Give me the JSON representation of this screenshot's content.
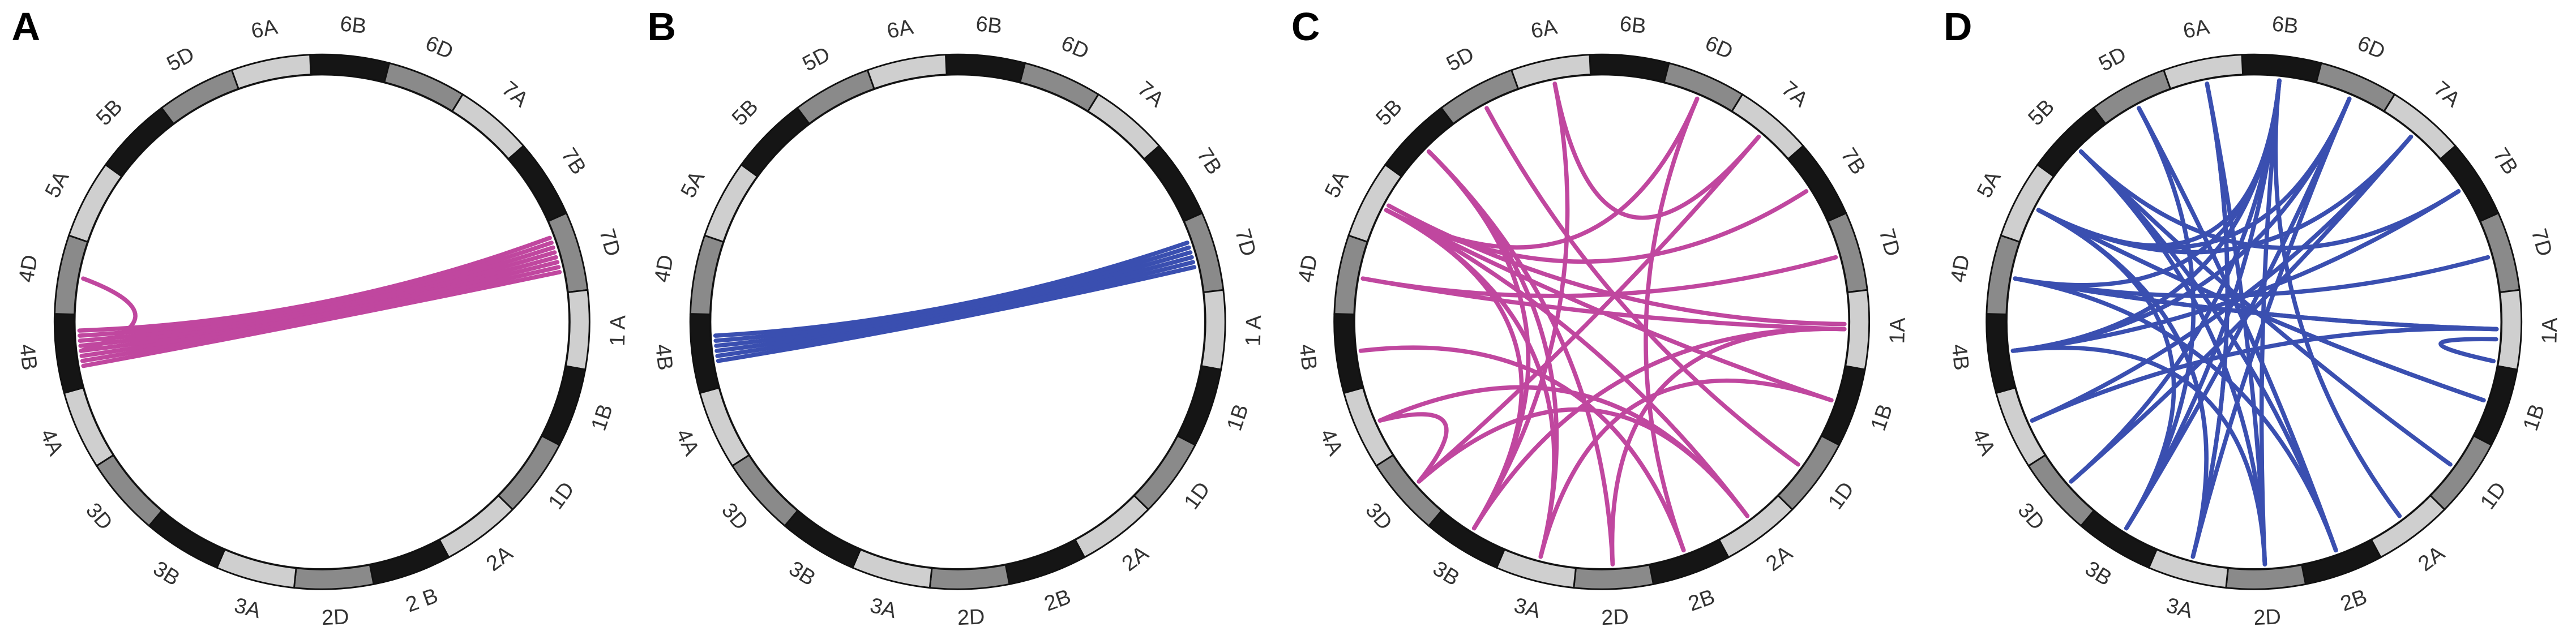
{
  "panels": [
    {
      "label": "A",
      "chromosomes": [
        "6B",
        "6D",
        "7A",
        "7B",
        "7D",
        "1 A",
        "1B",
        "1D",
        "2A",
        "2 B",
        "2D",
        "3A",
        "3B",
        "3D",
        "4A",
        "4B",
        "4D",
        "5A",
        "5B",
        "5D",
        "6A"
      ]
    },
    {
      "label": "B",
      "chromosomes": [
        "6B",
        "6D",
        "7A",
        "7B",
        "7D",
        "1 A",
        "1B",
        "1D",
        "2A",
        "2B",
        "2D",
        "3A",
        "3B",
        "3D",
        "4A",
        "4B",
        "4D",
        "5A",
        "5B",
        "5D",
        "6A"
      ]
    },
    {
      "label": "C",
      "chromosomes": [
        "6B",
        "6D",
        "7A",
        "7B",
        "7D",
        "1A",
        "1B",
        "1D",
        "2A",
        "2B",
        "2D",
        "3A",
        "3B",
        "3D",
        "4A",
        "4B",
        "4D",
        "5A",
        "5B",
        "5D",
        "6A"
      ]
    },
    {
      "label": "D",
      "chromosomes": [
        "6B",
        "6D",
        "7A",
        "7B",
        "7D",
        "1A",
        "1B",
        "1D",
        "2A",
        "2B",
        "2D",
        "3A",
        "3B",
        "3D",
        "4A",
        "4B",
        "4D",
        "5A",
        "5B",
        "5D",
        "6A"
      ]
    }
  ]
}
